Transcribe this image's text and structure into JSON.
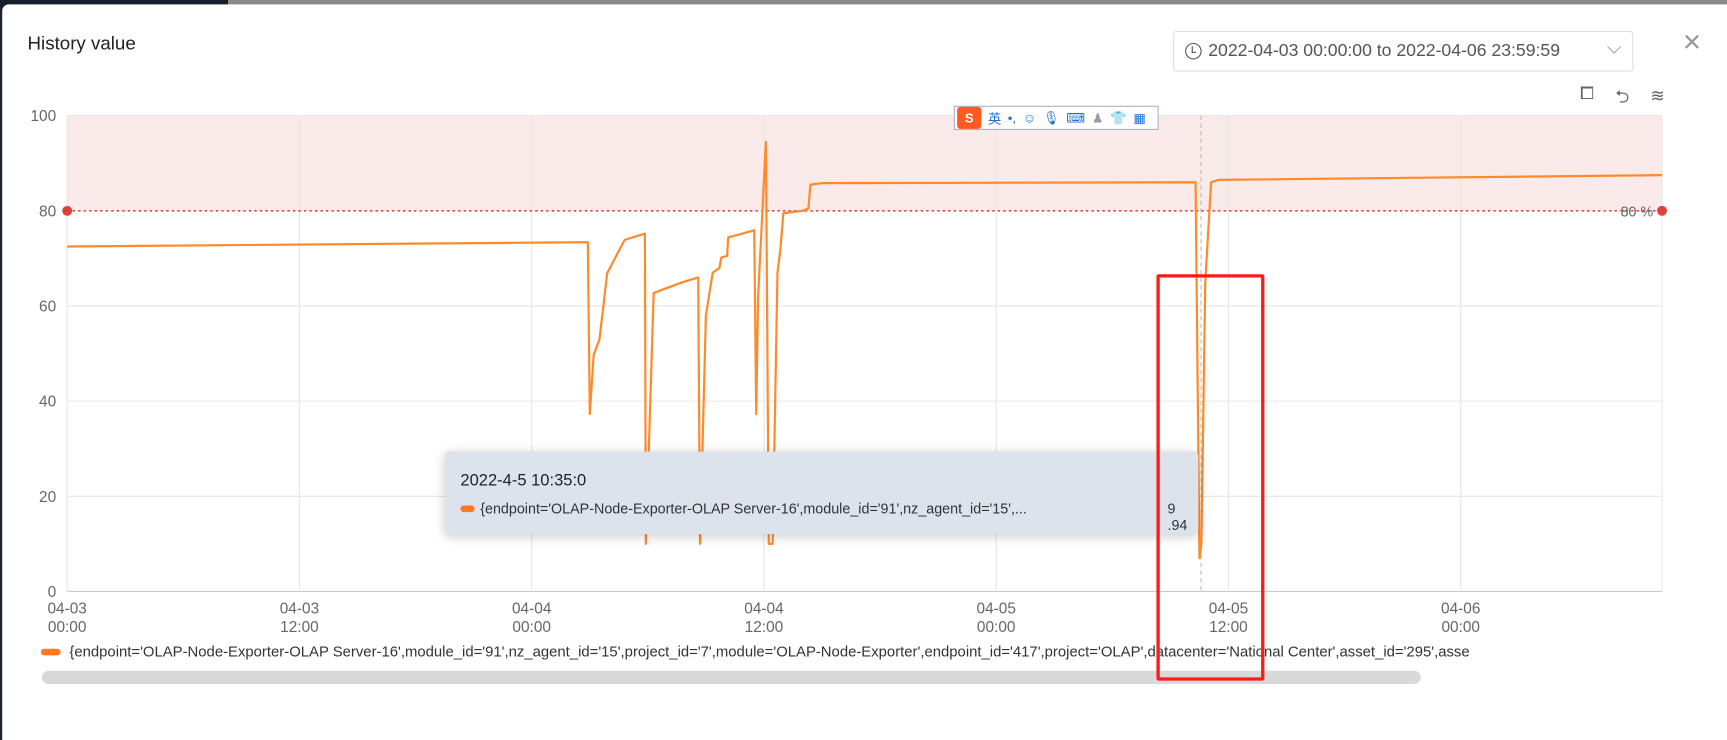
{
  "dialog": {
    "title": "History value",
    "date_range": "2022-04-03 00:00:00 to 2022-04-06 23:59:59"
  },
  "toolbar": {
    "zoom_icon": "zoom-select-icon",
    "reset_icon": "zoom-reset-icon",
    "layers_icon": "stack-layers-icon"
  },
  "ime_toolbar": {
    "lang": "英",
    "punct": "•,",
    "icons": [
      "smiley-icon",
      "microphone-icon",
      "keyboard-icon",
      "user-icon",
      "shirt-icon",
      "grid-icon"
    ]
  },
  "tooltip": {
    "time": "2022-4-5 10:35:0",
    "series": "{endpoint='OLAP-Node-Exporter-OLAP Server-16',module_id='91',nz_agent_id='15',...",
    "value": "9 .94"
  },
  "legend": {
    "label": "{endpoint='OLAP-Node-Exporter-OLAP Server-16',module_id='91',nz_agent_id='15',project_id='7',module='OLAP-Node-Exporter',endpoint_id='417',project='OLAP',datacenter='National Center',asset_id='295',asse"
  },
  "chart_data": {
    "type": "line",
    "xlim": [
      "2022-04-03 00:00",
      "2022-04-06 10:24"
    ],
    "ylim": [
      0,
      100
    ],
    "y_ticks": [
      "0",
      "20",
      "40",
      "60",
      "80",
      "100"
    ],
    "x_ticks": [
      {
        "date": "04-03",
        "time": "00:00",
        "at": "2022-04-03 00:00"
      },
      {
        "date": "04-03",
        "time": "12:00",
        "at": "2022-04-03 12:00"
      },
      {
        "date": "04-04",
        "time": "00:00",
        "at": "2022-04-04 00:00"
      },
      {
        "date": "04-04",
        "time": "12:00",
        "at": "2022-04-04 12:00"
      },
      {
        "date": "04-05",
        "time": "00:00",
        "at": "2022-04-05 00:00"
      },
      {
        "date": "04-05",
        "time": "12:00",
        "at": "2022-04-05 12:00"
      },
      {
        "date": "04-06",
        "time": "00:00",
        "at": "2022-04-06 00:00"
      }
    ],
    "grid": true,
    "threshold": {
      "value": 80,
      "label": "80 %",
      "color": "#e0403a",
      "area": [
        80,
        100
      ],
      "area_color": "#fbeaea"
    },
    "series_color": "#ff8a2a",
    "cursor": "2022-04-05 10:35",
    "points": [
      [
        "2022-04-03 00:00",
        72.5
      ],
      [
        "2022-04-04 02:54",
        73.4
      ],
      [
        "2022-04-04 03:00",
        37.3
      ],
      [
        "2022-04-04 03:12",
        49.7
      ],
      [
        "2022-04-04 03:30",
        53.0
      ],
      [
        "2022-04-04 03:54",
        66.9
      ],
      [
        "2022-04-04 04:48",
        73.9
      ],
      [
        "2022-04-04 05:51",
        75.2
      ],
      [
        "2022-04-04 05:54",
        10
      ],
      [
        "2022-04-04 06:18",
        62.7
      ],
      [
        "2022-04-04 06:48",
        63.5
      ],
      [
        "2022-04-04 07:48",
        65.0
      ],
      [
        "2022-04-04 08:36",
        66.0
      ],
      [
        "2022-04-04 08:42",
        10
      ],
      [
        "2022-04-04 09:00",
        58.1
      ],
      [
        "2022-04-04 09:21",
        67.0
      ],
      [
        "2022-04-04 09:42",
        68.0
      ],
      [
        "2022-04-04 09:48",
        70.2
      ],
      [
        "2022-04-04 10:06",
        70.5
      ],
      [
        "2022-04-04 10:09",
        74.4
      ],
      [
        "2022-04-04 11:30",
        75.9
      ],
      [
        "2022-04-04 11:36",
        37.3
      ],
      [
        "2022-04-04 11:42",
        62
      ],
      [
        "2022-04-04 12:06",
        94.5
      ],
      [
        "2022-04-04 12:15",
        10
      ],
      [
        "2022-04-04 12:27",
        10
      ],
      [
        "2022-04-04 12:42",
        67
      ],
      [
        "2022-04-04 12:51",
        72
      ],
      [
        "2022-04-04 13:00",
        79.5
      ],
      [
        "2022-04-04 14:00",
        80
      ],
      [
        "2022-04-04 14:18",
        80.5
      ],
      [
        "2022-04-04 14:24",
        85.5
      ],
      [
        "2022-04-04 15:00",
        85.8
      ],
      [
        "2022-04-05 10:18",
        86
      ],
      [
        "2022-04-05 10:30",
        7
      ],
      [
        "2022-04-05 10:36",
        10
      ],
      [
        "2022-04-05 10:48",
        65
      ],
      [
        "2022-04-05 11:06",
        86
      ],
      [
        "2022-04-05 11:30",
        86.5
      ],
      [
        "2022-04-06 10:24",
        87.5
      ]
    ]
  }
}
